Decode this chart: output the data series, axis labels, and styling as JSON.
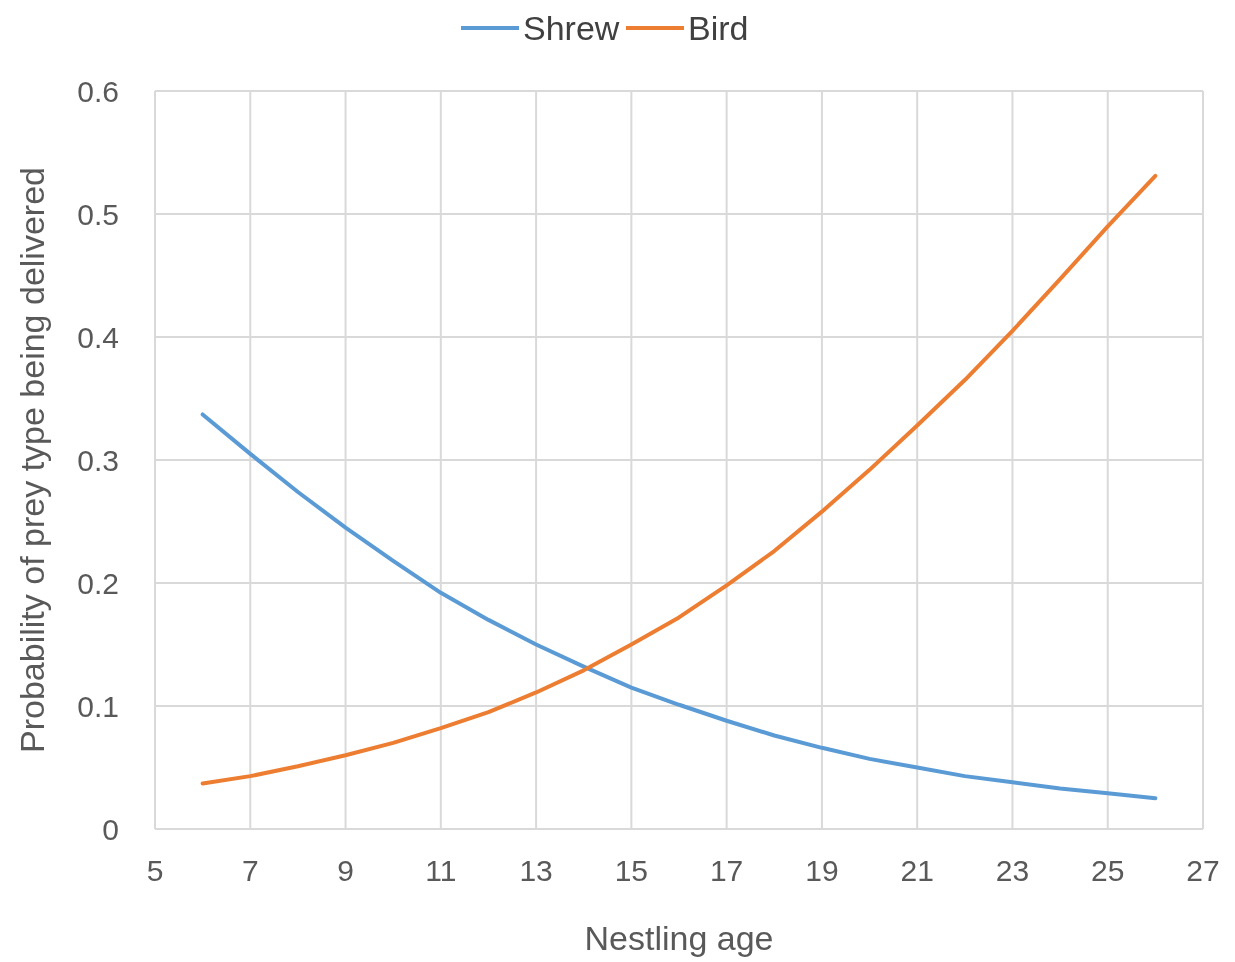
{
  "chart_data": {
    "type": "line",
    "xlabel": "Nestling age",
    "ylabel": "Probability of prey type being delivered",
    "x": [
      6,
      7,
      8,
      9,
      10,
      11,
      12,
      13,
      14,
      15,
      16,
      17,
      18,
      19,
      20,
      21,
      22,
      23,
      24,
      25,
      26
    ],
    "series": [
      {
        "name": "Shrew",
        "color": "#5b9bd5",
        "values": [
          0.337,
          0.305,
          0.274,
          0.245,
          0.218,
          0.192,
          0.17,
          0.15,
          0.132,
          0.115,
          0.101,
          0.088,
          0.076,
          0.066,
          0.057,
          0.05,
          0.043,
          0.038,
          0.033,
          0.029,
          0.025
        ]
      },
      {
        "name": "Bird",
        "color": "#ed7d31",
        "values": [
          0.037,
          0.043,
          0.051,
          0.06,
          0.07,
          0.082,
          0.095,
          0.111,
          0.129,
          0.15,
          0.172,
          0.198,
          0.226,
          0.258,
          0.292,
          0.328,
          0.365,
          0.405,
          0.447,
          0.49,
          0.531
        ]
      }
    ],
    "xlim": [
      5,
      27
    ],
    "xticks": [
      5,
      7,
      9,
      11,
      13,
      15,
      17,
      19,
      21,
      23,
      25,
      27
    ],
    "ylim": [
      0,
      0.6
    ],
    "yticks": [
      0,
      {
        "value": 0.1,
        "label": "0.1"
      },
      {
        "value": 0.2,
        "label": "0.2"
      },
      {
        "value": 0.3,
        "label": "0.3"
      },
      {
        "value": 0.4,
        "label": "0.4"
      },
      {
        "value": 0.5,
        "label": "0.5"
      },
      {
        "value": 0.6,
        "label": "0.6"
      }
    ],
    "grid": true,
    "legend": "top",
    "marker": "none",
    "line_style": "solid"
  }
}
